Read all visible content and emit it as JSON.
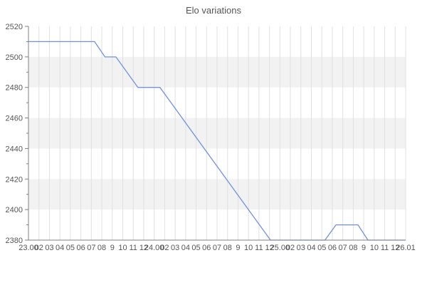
{
  "chart_data": {
    "type": "line",
    "title": "Elo variations",
    "xlabel": "",
    "ylabel": "",
    "y_min": 2380,
    "y_max": 2520,
    "y_major_step": 20,
    "y_minor_step": 10,
    "grid": true,
    "legend": "none",
    "y_tick_labels": [
      "2520",
      "2500",
      "2480",
      "2460",
      "2440",
      "2420",
      "2400",
      "2380"
    ],
    "x_tick_labels": [
      "23.00",
      "02",
      "03",
      "04",
      "05",
      "06",
      "07",
      "08",
      "9",
      "10",
      "11",
      "12",
      "24.00",
      "02",
      "03",
      "04",
      "05",
      "06",
      "07",
      "08",
      "9",
      "10",
      "11",
      "12",
      "25.00",
      "02",
      "03",
      "04",
      "05",
      "06",
      "07",
      "08",
      "9",
      "10",
      "11",
      "12",
      "26.01"
    ],
    "gray_band_ranges": [
      [
        2480,
        2500
      ],
      [
        2440,
        2460
      ],
      [
        2400,
        2420
      ]
    ],
    "series": [
      {
        "name": "Elo",
        "points": [
          {
            "t": 0,
            "time": "23.00",
            "elo": 2510
          },
          {
            "t": 6.3,
            "time": "23.07",
            "elo": 2510
          },
          {
            "t": 7.3,
            "time": "23.08",
            "elo": 2500
          },
          {
            "t": 8.35,
            "time": "23.09",
            "elo": 2500
          },
          {
            "t": 10.45,
            "time": "23.11",
            "elo": 2480
          },
          {
            "t": 12.55,
            "time": "24.00",
            "elo": 2480
          },
          {
            "t": 23.1,
            "time": "24.12",
            "elo": 2380
          },
          {
            "t": 28.3,
            "time": "25.05",
            "elo": 2380
          },
          {
            "t": 29.35,
            "time": "25.06",
            "elo": 2390
          },
          {
            "t": 31.45,
            "time": "25.08",
            "elo": 2390
          },
          {
            "t": 32.4,
            "time": "25.09",
            "elo": 2380
          },
          {
            "t": 36,
            "time": "26.01",
            "elo": 2380
          }
        ]
      }
    ],
    "colors": {
      "line": "#7191e0",
      "band": "#f2f2f2",
      "grid": "#e0e0e0",
      "axis": "#808080",
      "text": "#555555",
      "background": "#ffffff"
    }
  }
}
